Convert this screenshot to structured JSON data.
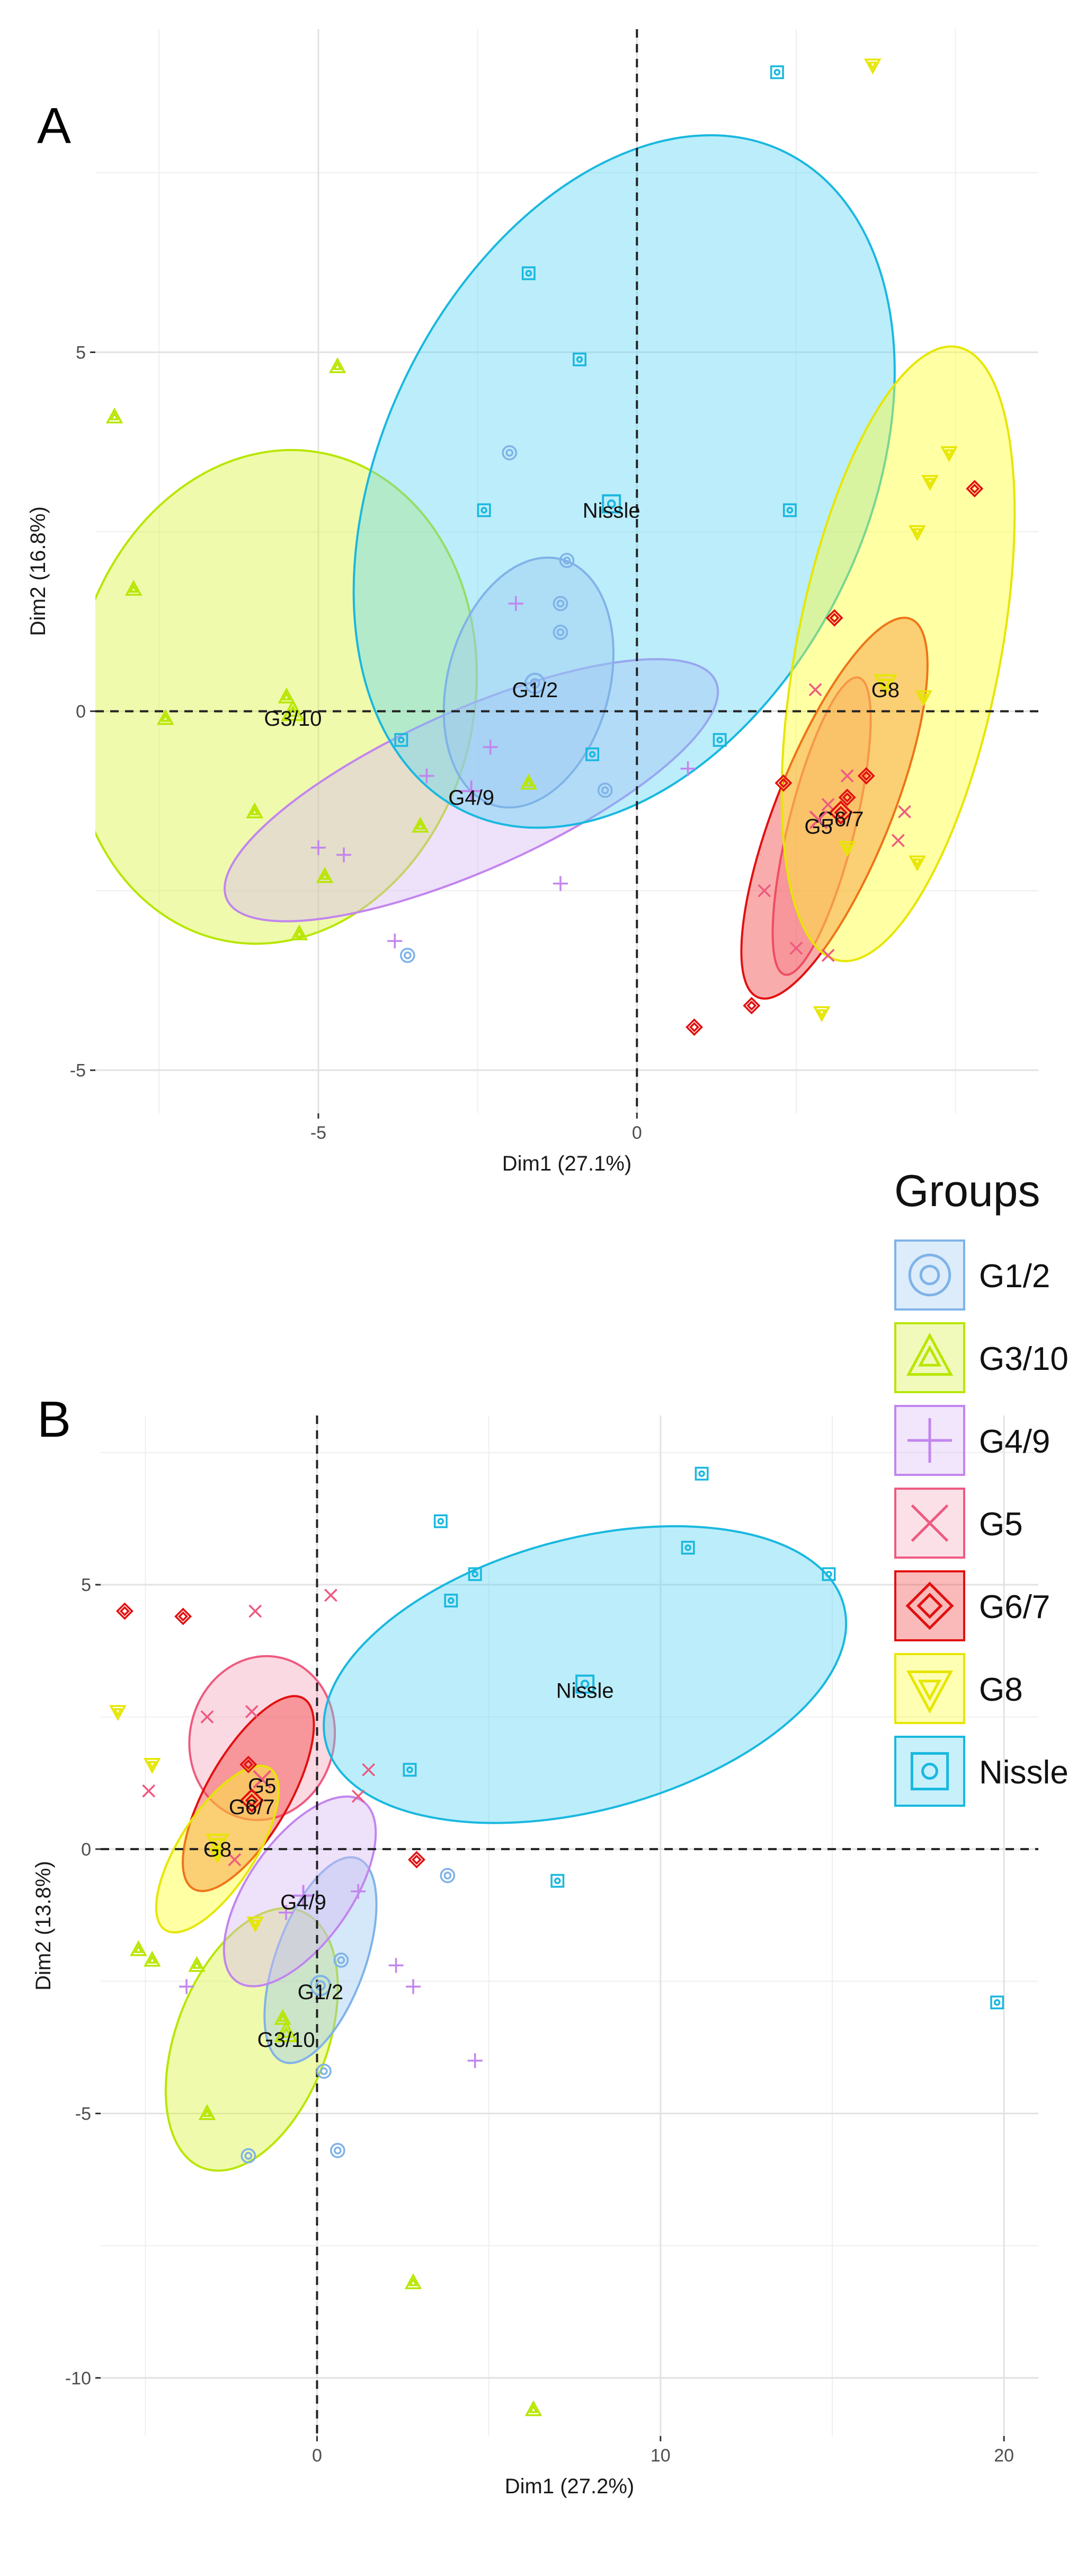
{
  "chart_data": [
    {
      "type": "scatter",
      "panel": "A",
      "xlabel": "Dim1 (27.1%)",
      "ylabel": "Dim2 (16.8%)",
      "xlim": [
        -8.5,
        6.3
      ],
      "ylim": [
        -5.6,
        9.5
      ],
      "xticks": [
        -5,
        0
      ],
      "yticks": [
        -5,
        0,
        5
      ],
      "grid": true,
      "ellipses": [
        {
          "group": "G3/10",
          "cx": -5.7,
          "cy": 0.2,
          "rx": 3.15,
          "ry": 3.9,
          "angle": 12
        },
        {
          "group": "G4/9",
          "cx": -2.6,
          "cy": -1.1,
          "rx": 4.2,
          "ry": 1.25,
          "angle": -24
        },
        {
          "group": "Nissle",
          "cx": -0.2,
          "cy": 3.2,
          "rx": 5.75,
          "ry": 3.8,
          "angle": -64
        },
        {
          "group": "G1/2",
          "cx": -1.7,
          "cy": 0.4,
          "rx": 2.0,
          "ry": 1.27,
          "angle": -75
        },
        {
          "group": "G5",
          "cx": 2.9,
          "cy": -1.6,
          "rx": 2.4,
          "ry": 0.52,
          "angle": -76
        },
        {
          "group": "G6/7",
          "cx": 3.1,
          "cy": -1.35,
          "rx": 3.2,
          "ry": 0.9,
          "angle": -68
        },
        {
          "group": "G8",
          "cx": 4.1,
          "cy": 0.8,
          "rx": 4.9,
          "ry": 1.6,
          "angle": -79
        }
      ],
      "group_labels": [
        {
          "text": "Nissle",
          "x": -0.4,
          "y": 2.8
        },
        {
          "text": "G1/2",
          "x": -1.6,
          "y": 0.3
        },
        {
          "text": "G3/10",
          "x": -5.4,
          "y": -0.1
        },
        {
          "text": "G4/9",
          "x": -2.6,
          "y": -1.2
        },
        {
          "text": "G8",
          "x": 3.9,
          "y": 0.3
        },
        {
          "text": "G6/7",
          "x": 3.2,
          "y": -1.5
        },
        {
          "text": "G5",
          "x": 2.85,
          "y": -1.6
        }
      ],
      "points": [
        {
          "group": "Nissle",
          "x": 2.2,
          "y": 8.9
        },
        {
          "group": "Nissle",
          "x": -1.7,
          "y": 6.1
        },
        {
          "group": "Nissle",
          "x": -0.9,
          "y": 4.9
        },
        {
          "group": "Nissle",
          "x": -2.4,
          "y": 2.8
        },
        {
          "group": "Nissle",
          "x": 2.4,
          "y": 2.8
        },
        {
          "group": "Nissle",
          "x": -3.7,
          "y": -0.4
        },
        {
          "group": "Nissle",
          "x": 1.3,
          "y": -0.4
        },
        {
          "group": "Nissle",
          "x": -0.7,
          "y": -0.6
        },
        {
          "group": "G1/2",
          "x": -2.0,
          "y": 3.6
        },
        {
          "group": "G1/2",
          "x": -1.1,
          "y": 2.1
        },
        {
          "group": "G1/2",
          "x": -1.2,
          "y": 1.5
        },
        {
          "group": "G1/2",
          "x": -1.2,
          "y": 1.1
        },
        {
          "group": "G1/2",
          "x": -0.5,
          "y": -1.1
        },
        {
          "group": "G1/2",
          "x": -3.6,
          "y": -3.4
        },
        {
          "group": "G3/10",
          "x": -8.2,
          "y": 4.1
        },
        {
          "group": "G3/10",
          "x": -4.7,
          "y": 4.8
        },
        {
          "group": "G3/10",
          "x": -7.9,
          "y": 1.7
        },
        {
          "group": "G3/10",
          "x": -5.5,
          "y": 0.2
        },
        {
          "group": "G3/10",
          "x": -7.4,
          "y": -0.1
        },
        {
          "group": "G3/10",
          "x": -6.0,
          "y": -1.4
        },
        {
          "group": "G3/10",
          "x": -3.4,
          "y": -1.6
        },
        {
          "group": "G3/10",
          "x": -4.9,
          "y": -2.3
        },
        {
          "group": "G3/10",
          "x": -5.3,
          "y": -3.1
        },
        {
          "group": "G3/10",
          "x": -1.7,
          "y": -1.0
        },
        {
          "group": "G4/9",
          "x": -1.9,
          "y": 1.5
        },
        {
          "group": "G4/9",
          "x": -3.3,
          "y": -0.9
        },
        {
          "group": "G4/9",
          "x": -2.3,
          "y": -0.5
        },
        {
          "group": "G4/9",
          "x": -5.0,
          "y": -1.9
        },
        {
          "group": "G4/9",
          "x": -4.6,
          "y": -2.0
        },
        {
          "group": "G4/9",
          "x": -3.8,
          "y": -3.2
        },
        {
          "group": "G4/9",
          "x": -1.2,
          "y": -2.4
        },
        {
          "group": "G4/9",
          "x": 0.8,
          "y": -0.8
        },
        {
          "group": "G5",
          "x": 2.8,
          "y": 0.3
        },
        {
          "group": "G5",
          "x": 3.0,
          "y": -1.3
        },
        {
          "group": "G5",
          "x": 2.0,
          "y": -2.5
        },
        {
          "group": "G5",
          "x": 2.5,
          "y": -3.3
        },
        {
          "group": "G5",
          "x": 3.0,
          "y": -3.4
        },
        {
          "group": "G5",
          "x": 3.3,
          "y": -0.9
        },
        {
          "group": "G5",
          "x": 4.1,
          "y": -1.8
        },
        {
          "group": "G5",
          "x": 4.2,
          "y": -1.4
        },
        {
          "group": "G6/7",
          "x": 5.3,
          "y": 3.1
        },
        {
          "group": "G6/7",
          "x": 3.1,
          "y": 1.3
        },
        {
          "group": "G6/7",
          "x": 2.3,
          "y": -1.0
        },
        {
          "group": "G6/7",
          "x": 3.3,
          "y": -1.2
        },
        {
          "group": "G6/7",
          "x": 3.6,
          "y": -0.9
        },
        {
          "group": "G6/7",
          "x": 1.8,
          "y": -4.1
        },
        {
          "group": "G6/7",
          "x": 0.9,
          "y": -4.4
        },
        {
          "group": "G8",
          "x": 3.7,
          "y": 9.0
        },
        {
          "group": "G8",
          "x": 4.9,
          "y": 3.6
        },
        {
          "group": "G8",
          "x": 4.6,
          "y": 3.2
        },
        {
          "group": "G8",
          "x": 4.4,
          "y": 2.5
        },
        {
          "group": "G8",
          "x": 4.5,
          "y": 0.2
        },
        {
          "group": "G8",
          "x": 3.3,
          "y": -1.9
        },
        {
          "group": "G8",
          "x": 4.4,
          "y": -2.1
        },
        {
          "group": "G8",
          "x": 2.9,
          "y": -4.2
        }
      ]
    },
    {
      "type": "scatter",
      "panel": "B",
      "xlabel": "Dim1 (27.2%)",
      "ylabel": "Dim2 (13.8%)",
      "xlim": [
        -6.3,
        21
      ],
      "ylim": [
        -11.1,
        8.2
      ],
      "xticks": [
        0,
        10,
        20
      ],
      "yticks": [
        -10,
        -5,
        0,
        5
      ],
      "grid": true,
      "ellipses": [
        {
          "group": "G3/10",
          "cx": -1.9,
          "cy": -3.6,
          "rx": 4.0,
          "ry": 2.2,
          "angle": -69
        },
        {
          "group": "G1/2",
          "cx": 0.1,
          "cy": -2.1,
          "rx": 3.15,
          "ry": 1.3,
          "angle": -70
        },
        {
          "group": "G4/9",
          "cx": -0.5,
          "cy": -0.8,
          "rx": 3.2,
          "ry": 1.5,
          "angle": -55
        },
        {
          "group": "G5",
          "cx": -1.6,
          "cy": 2.1,
          "rx": 2.4,
          "ry": 2.1,
          "angle": -76
        },
        {
          "group": "G6/7",
          "cx": -2.0,
          "cy": 1.05,
          "rx": 3.2,
          "ry": 1.2,
          "angle": -60
        },
        {
          "group": "G8",
          "cx": -2.9,
          "cy": 0.0,
          "rx": 2.8,
          "ry": 1.1,
          "angle": -57
        },
        {
          "group": "Nissle",
          "cx": 7.8,
          "cy": 3.3,
          "rx": 7.8,
          "ry": 3.95,
          "angle": -15
        }
      ],
      "group_labels": [
        {
          "text": "Nissle",
          "x": 7.8,
          "y": 3.0
        },
        {
          "text": "G5",
          "x": -1.6,
          "y": 1.2
        },
        {
          "text": "G6/7",
          "x": -1.9,
          "y": 0.8
        },
        {
          "text": "G8",
          "x": -2.9,
          "y": 0.0
        },
        {
          "text": "G4/9",
          "x": -0.4,
          "y": -1.0
        },
        {
          "text": "G1/2",
          "x": 0.1,
          "y": -2.7
        },
        {
          "text": "G3/10",
          "x": -0.9,
          "y": -3.6
        }
      ],
      "points": [
        {
          "group": "Nissle",
          "x": 11.2,
          "y": 7.1
        },
        {
          "group": "Nissle",
          "x": 3.6,
          "y": 6.2
        },
        {
          "group": "Nissle",
          "x": 10.8,
          "y": 5.7
        },
        {
          "group": "Nissle",
          "x": 4.6,
          "y": 5.2
        },
        {
          "group": "Nissle",
          "x": 14.9,
          "y": 5.2
        },
        {
          "group": "Nissle",
          "x": 3.9,
          "y": 4.7
        },
        {
          "group": "Nissle",
          "x": 2.7,
          "y": 1.5
        },
        {
          "group": "Nissle",
          "x": 7.0,
          "y": -0.6
        },
        {
          "group": "Nissle",
          "x": 19.8,
          "y": -2.9
        },
        {
          "group": "G1/2",
          "x": 3.8,
          "y": -0.5
        },
        {
          "group": "G1/2",
          "x": 0.6,
          "y": -5.7
        },
        {
          "group": "G1/2",
          "x": -2.0,
          "y": -5.8
        },
        {
          "group": "G1/2",
          "x": 0.2,
          "y": -4.2
        },
        {
          "group": "G1/2",
          "x": 0.7,
          "y": -2.1
        },
        {
          "group": "G3/10",
          "x": -5.2,
          "y": -1.9
        },
        {
          "group": "G3/10",
          "x": -4.8,
          "y": -2.1
        },
        {
          "group": "G3/10",
          "x": -3.5,
          "y": -2.2
        },
        {
          "group": "G3/10",
          "x": -3.2,
          "y": -5.0
        },
        {
          "group": "G3/10",
          "x": 2.8,
          "y": -8.2
        },
        {
          "group": "G3/10",
          "x": 6.3,
          "y": -10.6
        },
        {
          "group": "G3/10",
          "x": -1.0,
          "y": -3.2
        },
        {
          "group": "G4/9",
          "x": -3.8,
          "y": -2.6
        },
        {
          "group": "G4/9",
          "x": 2.3,
          "y": -2.2
        },
        {
          "group": "G4/9",
          "x": 2.8,
          "y": -2.6
        },
        {
          "group": "G4/9",
          "x": 4.6,
          "y": -4.0
        },
        {
          "group": "G4/9",
          "x": -0.9,
          "y": -1.2
        },
        {
          "group": "G4/9",
          "x": 1.2,
          "y": -0.8
        },
        {
          "group": "G5",
          "x": -1.8,
          "y": 4.5
        },
        {
          "group": "G5",
          "x": 0.4,
          "y": 4.8
        },
        {
          "group": "G5",
          "x": -3.2,
          "y": 2.5
        },
        {
          "group": "G5",
          "x": -1.9,
          "y": 2.6
        },
        {
          "group": "G5",
          "x": 1.5,
          "y": 1.5
        },
        {
          "group": "G5",
          "x": -4.9,
          "y": 1.1
        },
        {
          "group": "G5",
          "x": 1.2,
          "y": 1.0
        },
        {
          "group": "G5",
          "x": -2.4,
          "y": -0.2
        },
        {
          "group": "G6/7",
          "x": -5.6,
          "y": 4.5
        },
        {
          "group": "G6/7",
          "x": -3.9,
          "y": 4.4
        },
        {
          "group": "G6/7",
          "x": -2.0,
          "y": 1.6
        },
        {
          "group": "G6/7",
          "x": 2.9,
          "y": -0.2
        },
        {
          "group": "G8",
          "x": -5.8,
          "y": 2.6
        },
        {
          "group": "G8",
          "x": -4.8,
          "y": 1.6
        },
        {
          "group": "G8",
          "x": -2.9,
          "y": -0.1
        },
        {
          "group": "G8",
          "x": -1.8,
          "y": -1.4
        }
      ]
    }
  ],
  "legend": {
    "title": "Groups",
    "items": [
      {
        "label": "G1/2",
        "shape": "circle"
      },
      {
        "label": "G3/10",
        "shape": "triangle"
      },
      {
        "label": "G4/9",
        "shape": "plus"
      },
      {
        "label": "G5",
        "shape": "cross"
      },
      {
        "label": "G6/7",
        "shape": "diamond"
      },
      {
        "label": "G8",
        "shape": "triangle-down"
      },
      {
        "label": "Nissle",
        "shape": "square"
      }
    ]
  },
  "groups": {
    "G1/2": {
      "stroke": "#7fb3e8",
      "fill": "#9cc8f0",
      "shape": "circle"
    },
    "G3/10": {
      "stroke": "#b8e600",
      "fill": "#d8f23a",
      "shape": "triangle"
    },
    "G4/9": {
      "stroke": "#c285ee",
      "fill": "#d7b8f3",
      "shape": "plus"
    },
    "G5": {
      "stroke": "#ee5a80",
      "fill": "#f6a5bb",
      "shape": "cross"
    },
    "G6/7": {
      "stroke": "#e21010",
      "fill": "#f03a3a",
      "shape": "diamond"
    },
    "G8": {
      "stroke": "#e6e600",
      "fill": "#ffff24",
      "shape": "triangle-down"
    },
    "Nissle": {
      "stroke": "#19b8df",
      "fill": "#5fd3f3",
      "shape": "square"
    }
  }
}
